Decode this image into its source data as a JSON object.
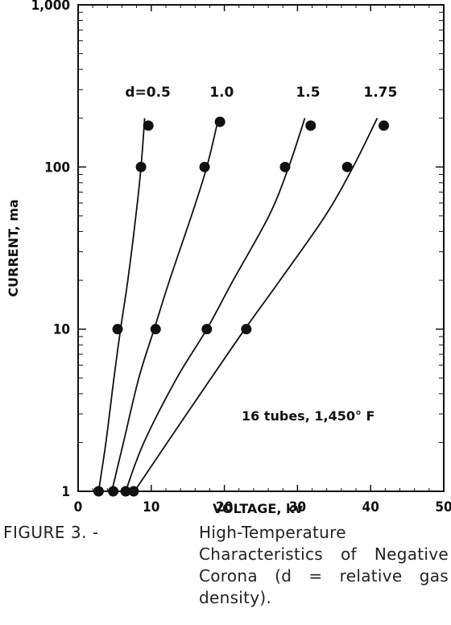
{
  "chart_data": {
    "type": "line",
    "x_axis": {
      "label": "VOLTAGE, kv",
      "range": [
        0,
        50
      ],
      "ticks": [
        0,
        10,
        20,
        30,
        40,
        50
      ]
    },
    "y_axis": {
      "label": "CURRENT, ma",
      "scale": "log",
      "range": [
        1,
        1000
      ],
      "ticks": [
        1,
        10,
        100,
        1000
      ],
      "tick_labels": [
        "1",
        "10",
        "100",
        "1,000"
      ]
    },
    "series": [
      {
        "name": "d=0.5",
        "points": [
          [
            2.8,
            1
          ],
          [
            5.4,
            10
          ],
          [
            8.6,
            100
          ],
          [
            9.6,
            180
          ]
        ],
        "curve": [
          [
            2.8,
            1
          ],
          [
            3.8,
            2
          ],
          [
            4.9,
            5
          ],
          [
            5.8,
            10
          ],
          [
            6.8,
            20
          ],
          [
            7.9,
            50
          ],
          [
            8.6,
            100
          ],
          [
            9.1,
            200
          ]
        ]
      },
      {
        "name": "1.0",
        "points": [
          [
            4.8,
            1
          ],
          [
            10.6,
            10
          ],
          [
            17.3,
            100
          ],
          [
            19.4,
            190
          ]
        ],
        "curve": [
          [
            4.6,
            1
          ],
          [
            6.2,
            2
          ],
          [
            8.3,
            5
          ],
          [
            10.4,
            10
          ],
          [
            12.5,
            20
          ],
          [
            15.5,
            50
          ],
          [
            17.6,
            100
          ],
          [
            19.2,
            200
          ]
        ]
      },
      {
        "name": "1.5",
        "points": [
          [
            6.5,
            1
          ],
          [
            17.6,
            10
          ],
          [
            28.3,
            100
          ],
          [
            31.8,
            180
          ]
        ],
        "curve": [
          [
            6.5,
            1
          ],
          [
            9.0,
            2
          ],
          [
            13.5,
            5
          ],
          [
            17.6,
            10
          ],
          [
            21.2,
            20
          ],
          [
            26.1,
            50
          ],
          [
            28.8,
            100
          ],
          [
            31.0,
            200
          ]
        ]
      },
      {
        "name": "1.75",
        "points": [
          [
            7.6,
            1
          ],
          [
            23.0,
            10
          ],
          [
            36.8,
            100
          ],
          [
            41.8,
            180
          ]
        ],
        "curve": [
          [
            7.7,
            1
          ],
          [
            12.2,
            2
          ],
          [
            18.2,
            5
          ],
          [
            22.8,
            10
          ],
          [
            27.6,
            20
          ],
          [
            33.8,
            50
          ],
          [
            37.6,
            100
          ],
          [
            40.9,
            200
          ]
        ]
      }
    ],
    "annotations": [
      "16 tubes, 1,450° F"
    ],
    "grid": false
  },
  "caption": {
    "label": "FIGURE 3. -",
    "text": "High-Temperature Characteristics of Negative Corona (d = relative gas density)."
  }
}
